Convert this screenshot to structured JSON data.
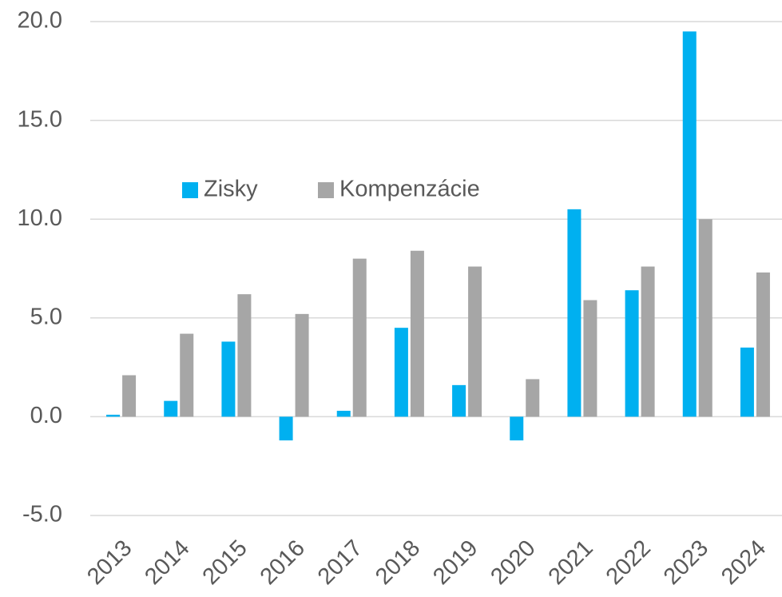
{
  "chart_data": {
    "type": "bar",
    "categories": [
      "2013",
      "2014",
      "2015",
      "2016",
      "2017",
      "2018",
      "2019",
      "2020",
      "2021",
      "2022",
      "2023",
      "2024"
    ],
    "series": [
      {
        "name": "Zisky",
        "color": "#00b0f0",
        "values": [
          0.1,
          0.8,
          3.8,
          -1.2,
          0.3,
          4.5,
          1.6,
          -1.2,
          10.5,
          6.4,
          19.5,
          3.5
        ]
      },
      {
        "name": "Kompenzácie",
        "color": "#a6a6a6",
        "values": [
          2.1,
          4.2,
          6.2,
          5.2,
          8.0,
          8.4,
          7.6,
          1.9,
          5.9,
          7.6,
          10.0,
          7.3
        ]
      }
    ],
    "ylim": [
      -5,
      20
    ],
    "yticks": [
      {
        "value": -5,
        "label": "-5.0"
      },
      {
        "value": 0,
        "label": "0.0"
      },
      {
        "value": 5,
        "label": "5.0"
      },
      {
        "value": 10,
        "label": "10.0"
      },
      {
        "value": 15,
        "label": "15.0"
      },
      {
        "value": 20,
        "label": "20.0"
      }
    ],
    "grid": true
  }
}
